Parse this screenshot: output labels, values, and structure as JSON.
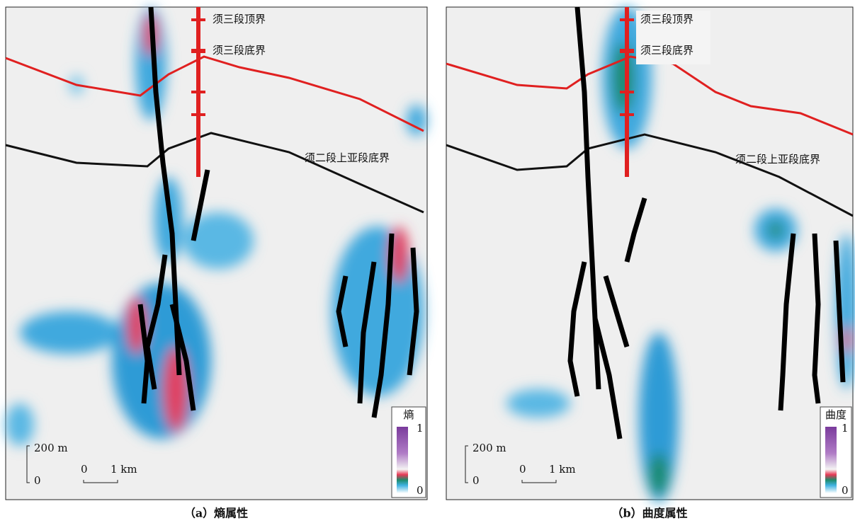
{
  "panels": [
    {
      "caption": "（a）熵属性",
      "horizons": [
        "须三段顶界",
        "须三段底界",
        "须二段上亚段底界"
      ],
      "legend": {
        "title": "熵",
        "max": "1",
        "min": "0"
      },
      "scale": {
        "vertical_top": "200 m",
        "vertical_bottom": "0",
        "horizontal_left": "0",
        "horizontal_right": "1 km"
      }
    },
    {
      "caption": "（b）曲度属性",
      "horizons": [
        "须三段顶界",
        "须三段底界",
        "须二段上亚段底界"
      ],
      "legend": {
        "title": "曲度",
        "max": "1",
        "min": "0"
      },
      "scale": {
        "vertical_top": "200 m",
        "vertical_bottom": "0",
        "horizontal_left": "0",
        "horizontal_right": "1 km"
      }
    }
  ]
}
